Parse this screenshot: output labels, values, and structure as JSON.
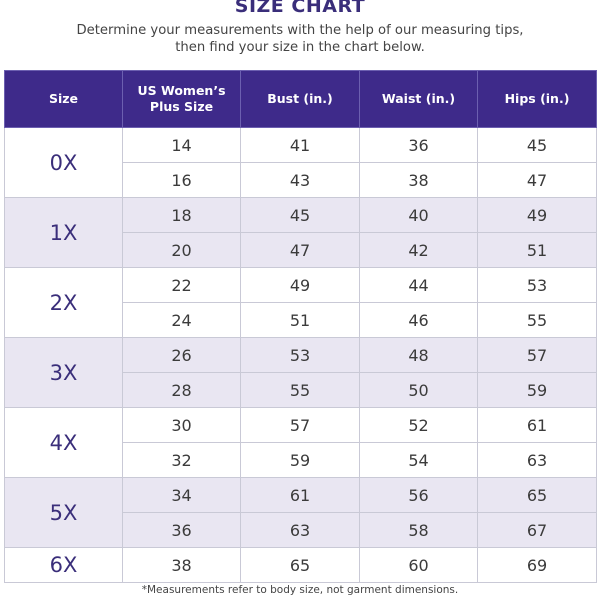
{
  "title": "SIZE CHART",
  "subtitle": {
    "line1": "Determine your measurements with the help of our measuring tips,",
    "line2": "then find your size in the chart below."
  },
  "table": {
    "headers": {
      "size": "Size",
      "us_plus_line1": "US Women’s",
      "us_plus_line2": "Plus Size",
      "bust": "Bust (in.)",
      "waist": "Waist (in.)",
      "hips": "Hips (in.)"
    },
    "groups": [
      {
        "size": "0X",
        "rows": [
          {
            "us": "14",
            "bust": "41",
            "waist": "36",
            "hips": "45"
          },
          {
            "us": "16",
            "bust": "43",
            "waist": "38",
            "hips": "47"
          }
        ]
      },
      {
        "size": "1X",
        "rows": [
          {
            "us": "18",
            "bust": "45",
            "waist": "40",
            "hips": "49"
          },
          {
            "us": "20",
            "bust": "47",
            "waist": "42",
            "hips": "51"
          }
        ]
      },
      {
        "size": "2X",
        "rows": [
          {
            "us": "22",
            "bust": "49",
            "waist": "44",
            "hips": "53"
          },
          {
            "us": "24",
            "bust": "51",
            "waist": "46",
            "hips": "55"
          }
        ]
      },
      {
        "size": "3X",
        "rows": [
          {
            "us": "26",
            "bust": "53",
            "waist": "48",
            "hips": "57"
          },
          {
            "us": "28",
            "bust": "55",
            "waist": "50",
            "hips": "59"
          }
        ]
      },
      {
        "size": "4X",
        "rows": [
          {
            "us": "30",
            "bust": "57",
            "waist": "52",
            "hips": "61"
          },
          {
            "us": "32",
            "bust": "59",
            "waist": "54",
            "hips": "63"
          }
        ]
      },
      {
        "size": "5X",
        "rows": [
          {
            "us": "34",
            "bust": "61",
            "waist": "56",
            "hips": "65"
          },
          {
            "us": "36",
            "bust": "63",
            "waist": "58",
            "hips": "67"
          }
        ]
      },
      {
        "size": "6X",
        "rows": [
          {
            "us": "38",
            "bust": "65",
            "waist": "60",
            "hips": "69"
          }
        ]
      }
    ]
  },
  "footnote": "*Measurements refer to body size, not garment dimensions.",
  "colors": {
    "header_bg": "#3e2a8a",
    "title": "#3a2e7a",
    "shaded_row": "#e9e6f2"
  }
}
